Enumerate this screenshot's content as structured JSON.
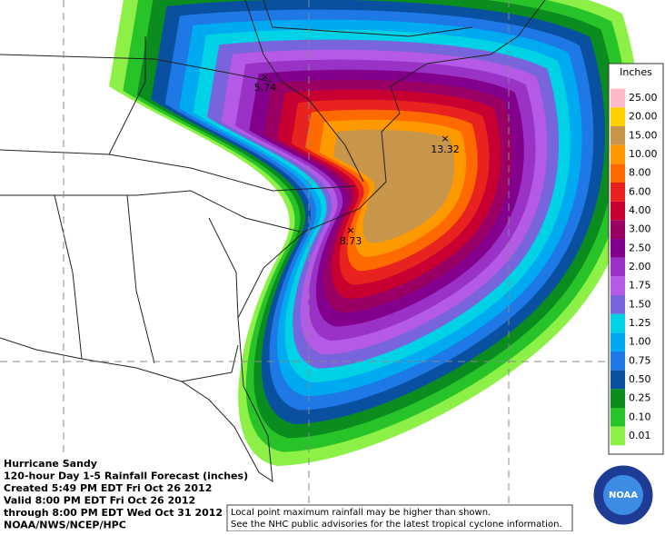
{
  "legend": {
    "title": "Inches",
    "items": [
      {
        "label": "25.00",
        "color": "#ffb8c8"
      },
      {
        "label": "20.00",
        "color": "#ffd000"
      },
      {
        "label": "15.00",
        "color": "#c8964b"
      },
      {
        "label": "10.00",
        "color": "#ff9900"
      },
      {
        "label": "8.00",
        "color": "#ff6a00"
      },
      {
        "label": "6.00",
        "color": "#e8221e"
      },
      {
        "label": "4.00",
        "color": "#c80032"
      },
      {
        "label": "3.00",
        "color": "#9a0064"
      },
      {
        "label": "2.50",
        "color": "#82008c"
      },
      {
        "label": "2.00",
        "color": "#9a32c8"
      },
      {
        "label": "1.75",
        "color": "#b45ae6"
      },
      {
        "label": "1.50",
        "color": "#7864dc"
      },
      {
        "label": "1.25",
        "color": "#00d2e6"
      },
      {
        "label": "1.00",
        "color": "#00aaf0"
      },
      {
        "label": "0.75",
        "color": "#1e78e6"
      },
      {
        "label": "0.50",
        "color": "#0a50a0"
      },
      {
        "label": "0.25",
        "color": "#0a8c1e"
      },
      {
        "label": "0.10",
        "color": "#28c328"
      },
      {
        "label": "0.01",
        "color": "#8cf046"
      }
    ]
  },
  "maxima": [
    {
      "label": "5.74"
    },
    {
      "label": "13.32"
    },
    {
      "label": "8.73"
    }
  ],
  "info": {
    "lines": [
      "Hurricane Sandy",
      "120-hour Day 1-5 Rainfall Forecast (inches)",
      "Created 5:49 PM EDT Fri Oct 26 2012",
      "Valid 8:00 PM EDT Fri Oct 26 2012",
      "through 8:00 PM EDT Wed Oct 31 2012",
      "NOAA/NWS/NCEP/HPC"
    ]
  },
  "note": {
    "lines": [
      "Local point maximum rainfall may be higher than shown.",
      "See the NHC public advisories for the latest tropical cyclone information."
    ]
  },
  "logo": {
    "text": "NOAA"
  }
}
